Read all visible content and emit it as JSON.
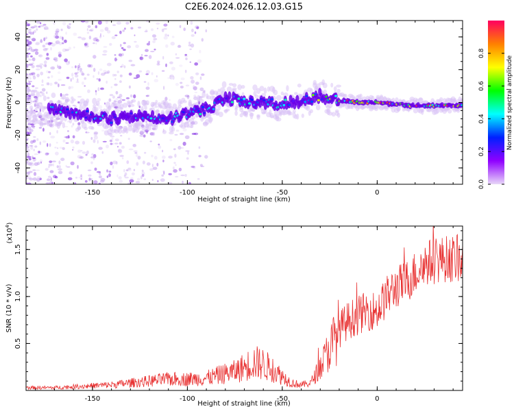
{
  "title": "C2E6.2024.026.12.03.G15",
  "chart_data": [
    {
      "type": "heatmap",
      "xlabel": "Height of straight line (km)",
      "ylabel": "Frequency (Hz)",
      "xlim": [
        -185,
        45
      ],
      "ylim": [
        -50,
        50
      ],
      "xticks": [
        -150,
        -100,
        -50,
        0
      ],
      "yticks": [
        -40,
        -20,
        0,
        20,
        40
      ],
      "colorbar": {
        "label": "Normalized spectral amplitude",
        "range": [
          0,
          1
        ],
        "ticks": [
          "0.0",
          "0.2",
          "0.4",
          "0.6",
          "0.8"
        ],
        "colors": [
          "#e8d8f8",
          "#9000ff",
          "#0020ff",
          "#00ffff",
          "#00ff00",
          "#ffff00",
          "#ff8000",
          "#ff0060"
        ]
      },
      "ridge": {
        "x": [
          -185,
          -170,
          -160,
          -150,
          -140,
          -130,
          -120,
          -110,
          -100,
          -90,
          -80,
          -70,
          -60,
          -50,
          -40,
          -30,
          -20,
          -10,
          0,
          10,
          20,
          30,
          45
        ],
        "y": [
          -3,
          -5,
          -7,
          -8,
          -10,
          -8,
          -9,
          -10,
          -7,
          -4,
          2,
          1,
          0,
          -1,
          1,
          4,
          1,
          0,
          0,
          -1,
          -2,
          -2,
          -2
        ]
      }
    },
    {
      "type": "line",
      "xlabel": "Height of straight line (km)",
      "ylabel": "SNR (10 * v/v)",
      "yscale_label": "(x10",
      "yscale_exp": "4",
      "xlim": [
        -185,
        45
      ],
      "ylim": [
        0,
        1.75
      ],
      "xticks": [
        -150,
        -100,
        -50,
        0
      ],
      "yticks": [
        0.5,
        1.0,
        1.5
      ],
      "ytick_labels": [
        "0.5",
        "1.0",
        "1.5"
      ],
      "color": "#e83030",
      "x": [
        -185,
        -170,
        -160,
        -150,
        -140,
        -130,
        -120,
        -110,
        -100,
        -90,
        -80,
        -75,
        -70,
        -65,
        -60,
        -55,
        -50,
        -45,
        -40,
        -35,
        -30,
        -25,
        -20,
        -15,
        -10,
        -5,
        0,
        5,
        10,
        15,
        20,
        25,
        30,
        35,
        40,
        45
      ],
      "y": [
        0.03,
        0.03,
        0.04,
        0.05,
        0.06,
        0.08,
        0.1,
        0.12,
        0.12,
        0.13,
        0.18,
        0.2,
        0.25,
        0.3,
        0.28,
        0.22,
        0.15,
        0.08,
        0.06,
        0.08,
        0.25,
        0.45,
        0.65,
        0.75,
        0.8,
        0.85,
        0.85,
        1.0,
        1.1,
        1.15,
        1.25,
        1.35,
        1.38,
        1.4,
        1.4,
        1.4
      ]
    }
  ]
}
